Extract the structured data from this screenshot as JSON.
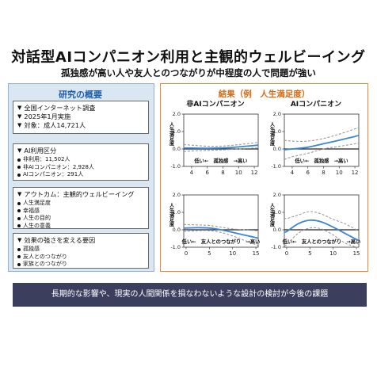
{
  "title": "対話型AIコンパニオン利用と主観的ウェルビーイング",
  "subtitle": "孤独感が高い人や友人とのつながりが中程度の人で問題が強い",
  "left": {
    "heading": "研究の概要",
    "survey": {
      "items": [
        "全国インターネット調査",
        "2025年1月実施",
        "対象：成人14,721人"
      ]
    },
    "usage": {
      "title": "AI利用区分",
      "items": [
        "非利用：11,502人",
        "非AIコンパニオン：2,928人",
        "AIコンパニオン：291人"
      ]
    },
    "outcome": {
      "title": "アウトカム：主観的ウェルビーイング",
      "items": [
        "人生満足度",
        "幸福感",
        "人生の目的",
        "人生の意義"
      ]
    },
    "modifiers": {
      "title": "効果の強さを変える要因",
      "items": [
        "孤独感",
        "友人とのつながり",
        "家族とのつながり"
      ]
    }
  },
  "right": {
    "heading": "結果（例　人生満足度）",
    "col_titles": [
      "非AIコンパニオン",
      "AIコンパニオン"
    ],
    "ylabel": "人生満足度",
    "row_xlabels": [
      "低い←　孤独感　→高い",
      "低い←　友人とのつながり　→高い"
    ]
  },
  "banner": "長期的な影響や、現実の人間関係を損なわないような設計の検討が今後の課題",
  "colors": {
    "line": "#3a86d4",
    "ci": "#9a9a9a",
    "ref": "#222222",
    "accent": "#e58a3a",
    "navy": "#3c3e5e"
  },
  "chart_data": [
    {
      "type": "line",
      "title": "非AIコンパニオン",
      "ylabel": "人生満足度",
      "xlabel": "低い←　孤独感　→高い",
      "xlim": [
        3,
        12.5
      ],
      "ylim": [
        -1.0,
        2.0
      ],
      "xticks": [
        4,
        6,
        8,
        10,
        12
      ],
      "yticks": [
        -1.0,
        0.0,
        1.0,
        2.0
      ],
      "x": [
        3,
        4,
        6,
        8,
        10,
        12,
        12.5
      ],
      "series": [
        {
          "values": [
            0.05,
            0.05,
            0.04,
            0.06,
            0.12,
            0.2,
            0.22
          ]
        },
        {
          "values": [
            -0.15,
            -0.12,
            -0.08,
            -0.05,
            0.0,
            0.05,
            0.05
          ]
        },
        {
          "values": [
            0.25,
            0.22,
            0.16,
            0.17,
            0.25,
            0.35,
            0.38
          ]
        }
      ]
    },
    {
      "type": "line",
      "title": "AIコンパニオン",
      "ylabel": "人生満足度",
      "xlabel": "低い←　孤独感　→高い",
      "xlim": [
        3,
        12.5
      ],
      "ylim": [
        -1.0,
        2.0
      ],
      "xticks": [
        4,
        6,
        8,
        10,
        12
      ],
      "yticks": [
        -1.0,
        0.0,
        1.0,
        2.0
      ],
      "x": [
        3,
        4,
        6,
        8,
        10,
        12,
        12.5
      ],
      "series": [
        {
          "values": [
            -0.05,
            0.0,
            0.1,
            0.3,
            0.5,
            0.72,
            0.78
          ]
        },
        {
          "values": [
            -0.6,
            -0.45,
            -0.25,
            0.0,
            0.15,
            0.3,
            0.35
          ]
        },
        {
          "values": [
            0.5,
            0.45,
            0.45,
            0.6,
            0.85,
            1.15,
            1.22
          ]
        }
      ]
    },
    {
      "type": "line",
      "title": "",
      "ylabel": "人生満足度",
      "xlabel": "低い←　友人とのつながり　→高い",
      "xlim": [
        -0.5,
        15.5
      ],
      "ylim": [
        -1.0,
        2.0
      ],
      "xticks": [
        0,
        5,
        10,
        15
      ],
      "yticks": [
        -1.0,
        0.0,
        1.0,
        2.0
      ],
      "x": [
        -0.5,
        0,
        2.5,
        5,
        7.5,
        10,
        12.5,
        15,
        15.5
      ],
      "series": [
        {
          "values": [
            0.1,
            0.1,
            0.12,
            0.1,
            0.0,
            -0.15,
            -0.3,
            -0.45,
            -0.48
          ]
        },
        {
          "values": [
            -0.12,
            -0.1,
            -0.05,
            -0.05,
            -0.15,
            -0.35,
            -0.6,
            -0.85,
            -0.9
          ]
        },
        {
          "values": [
            0.32,
            0.3,
            0.28,
            0.25,
            0.15,
            0.05,
            0.0,
            -0.05,
            -0.06
          ]
        }
      ]
    },
    {
      "type": "line",
      "title": "",
      "ylabel": "人生満足度",
      "xlabel": "低い←　友人とのつながり　→高い",
      "xlim": [
        -0.5,
        15.5
      ],
      "ylim": [
        -1.0,
        2.0
      ],
      "xticks": [
        0,
        5,
        10,
        15
      ],
      "yticks": [
        -1.0,
        0.0,
        1.0,
        2.0
      ],
      "x": [
        -0.5,
        0,
        2.5,
        5,
        7.5,
        10,
        12.5,
        15,
        15.5
      ],
      "series": [
        {
          "values": [
            -0.12,
            -0.1,
            0.35,
            0.55,
            0.45,
            0.15,
            -0.2,
            -0.55,
            -0.62
          ]
        },
        {
          "values": [
            -0.9,
            -0.85,
            -0.2,
            0.1,
            0.05,
            -0.3,
            -0.75,
            -1.0,
            -1.0
          ]
        },
        {
          "values": [
            0.7,
            0.65,
            0.85,
            1.05,
            0.9,
            0.6,
            0.35,
            0.0,
            -0.05
          ]
        }
      ]
    }
  ]
}
